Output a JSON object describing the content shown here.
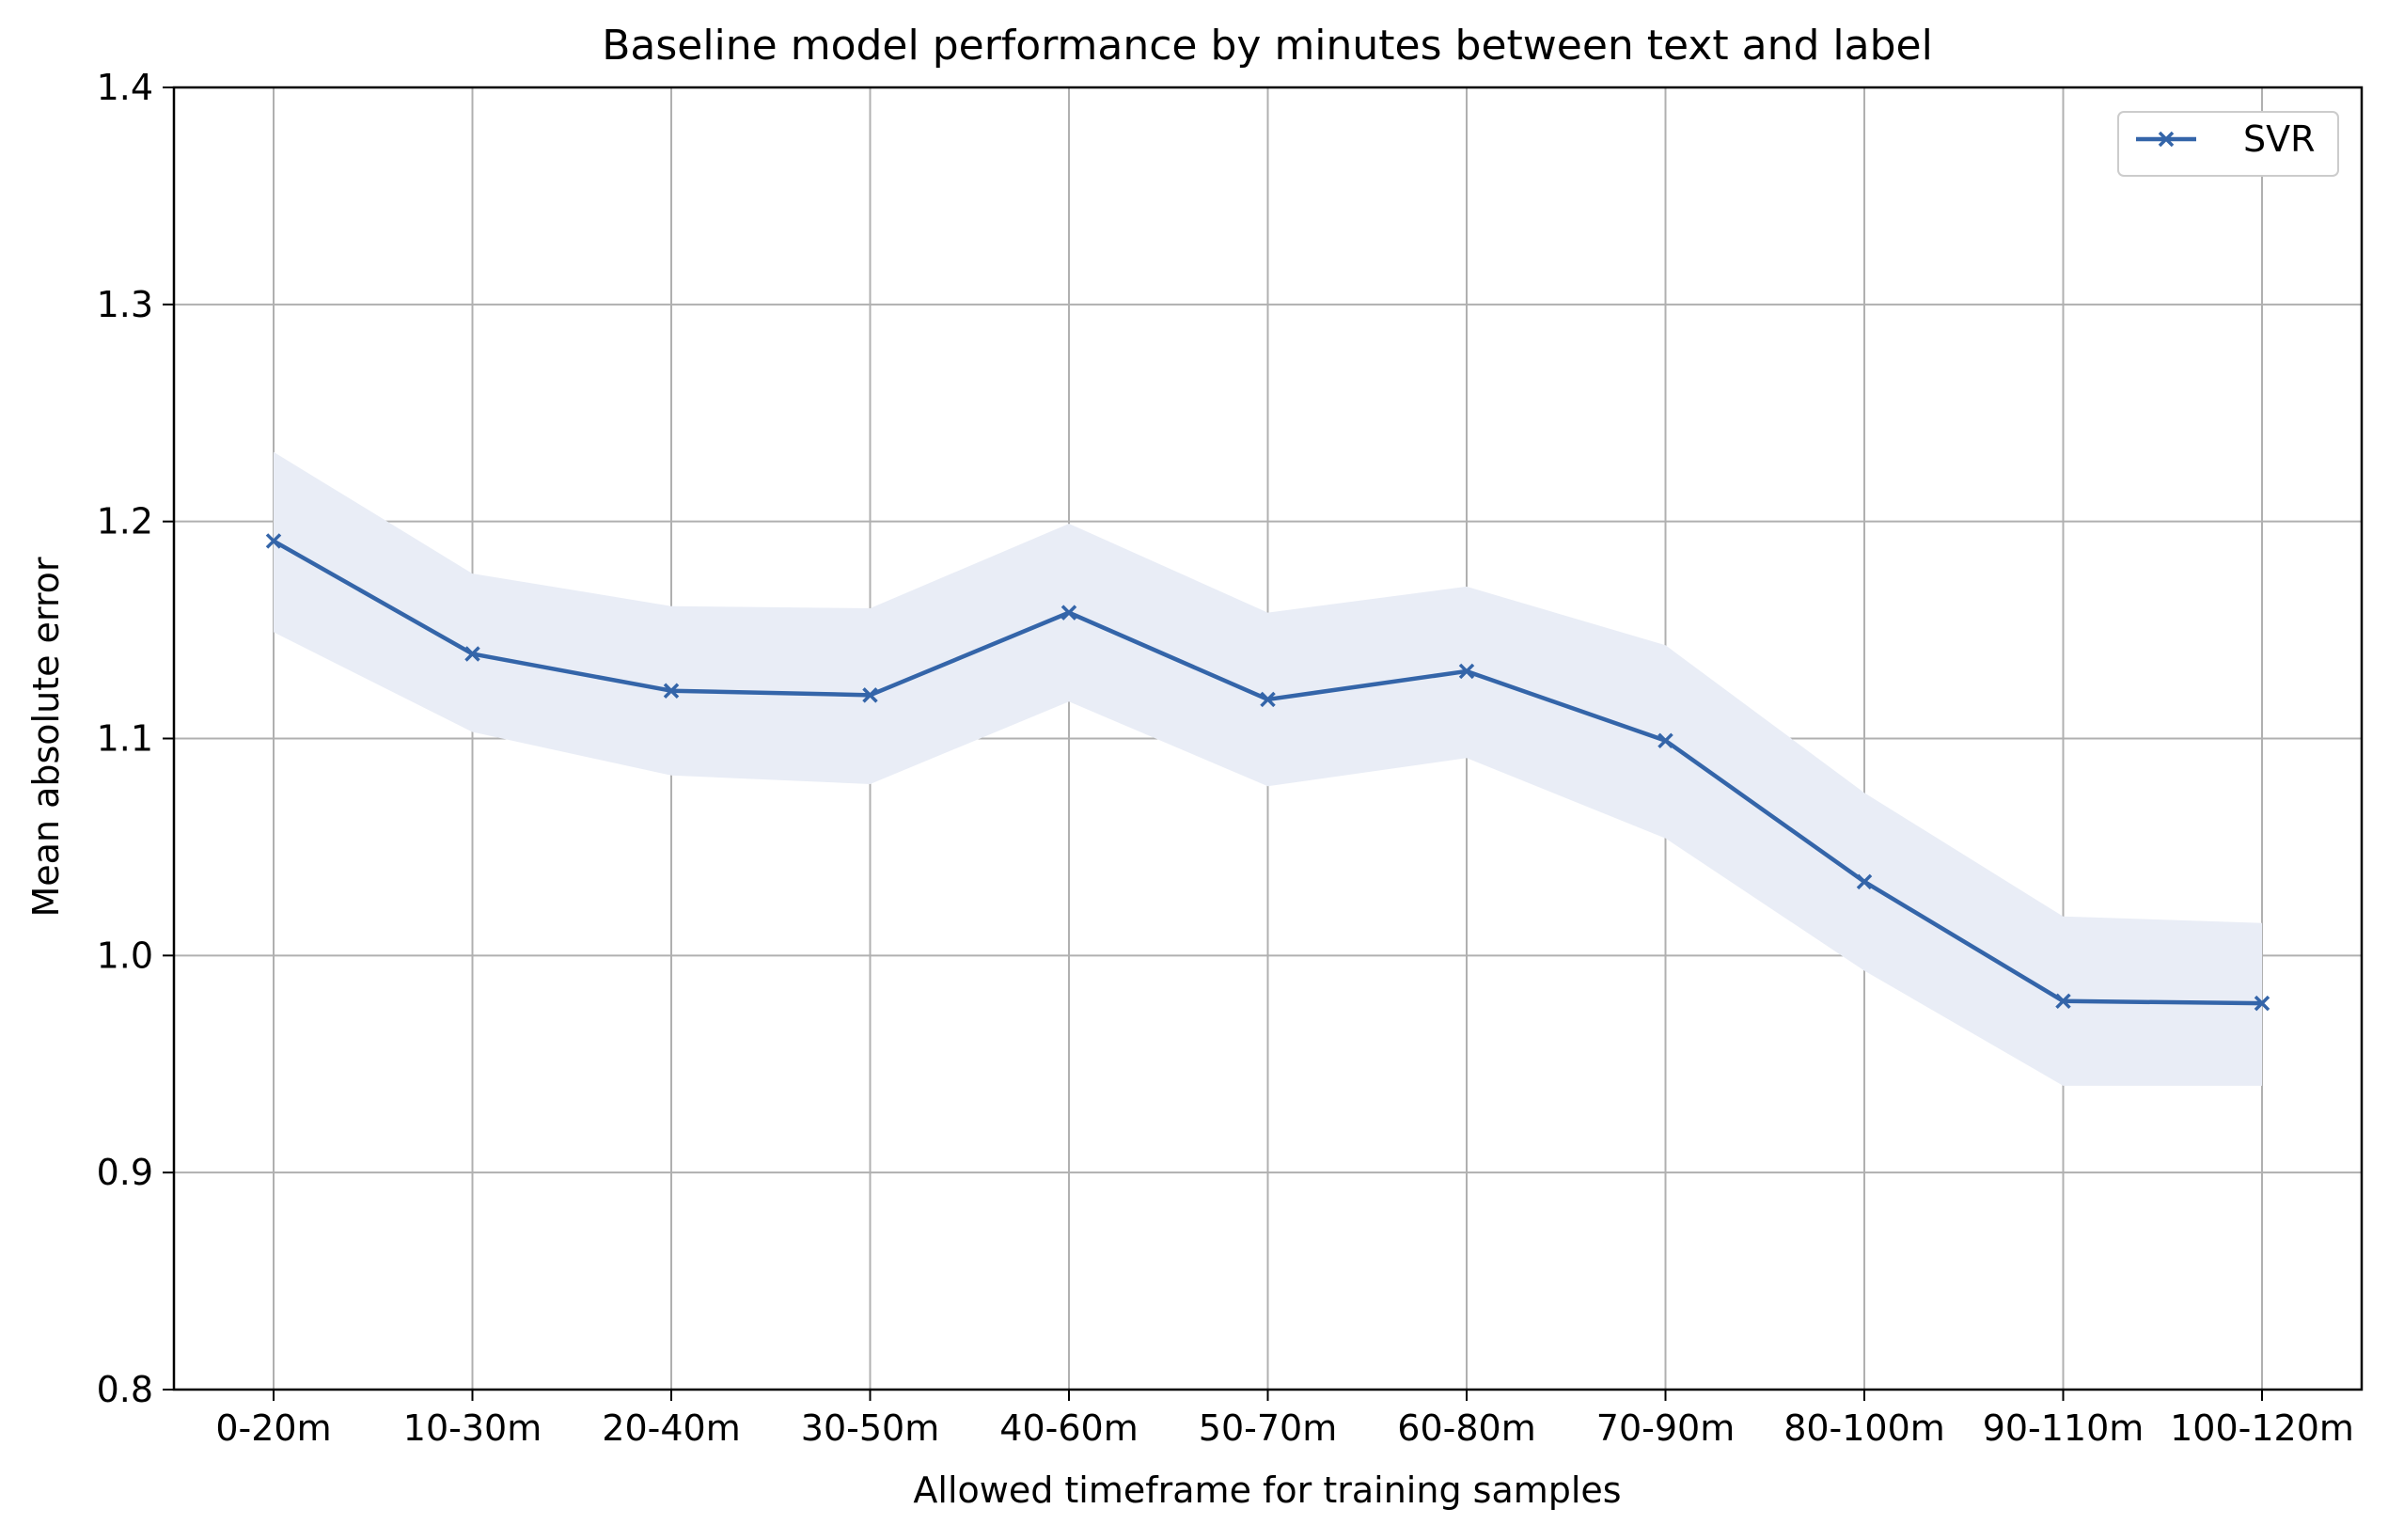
{
  "chart_data": {
    "type": "line",
    "title": "Baseline model performance by minutes between text and label",
    "xlabel": "Allowed timeframe for training samples",
    "ylabel": "Mean absolute error",
    "categories": [
      "0-20m",
      "10-30m",
      "20-40m",
      "30-50m",
      "40-60m",
      "50-70m",
      "60-80m",
      "70-90m",
      "80-100m",
      "90-110m",
      "100-120m"
    ],
    "ylim": [
      0.8,
      1.4
    ],
    "yticks": [
      "0.8",
      "0.9",
      "1.0",
      "1.1",
      "1.2",
      "1.3",
      "1.4"
    ],
    "grid": true,
    "legend_position": "top-right",
    "series": [
      {
        "name": "SVR",
        "marker": "x",
        "color": "#3465a9",
        "band_color": "#e9edf6",
        "values": [
          1.191,
          1.139,
          1.122,
          1.12,
          1.158,
          1.118,
          1.131,
          1.099,
          1.034,
          0.979,
          0.978
        ],
        "upper": [
          1.232,
          1.176,
          1.161,
          1.16,
          1.199,
          1.158,
          1.17,
          1.143,
          1.075,
          1.018,
          1.015
        ],
        "lower": [
          1.149,
          1.103,
          1.083,
          1.079,
          1.117,
          1.078,
          1.091,
          1.054,
          0.993,
          0.94,
          0.94
        ]
      }
    ]
  }
}
